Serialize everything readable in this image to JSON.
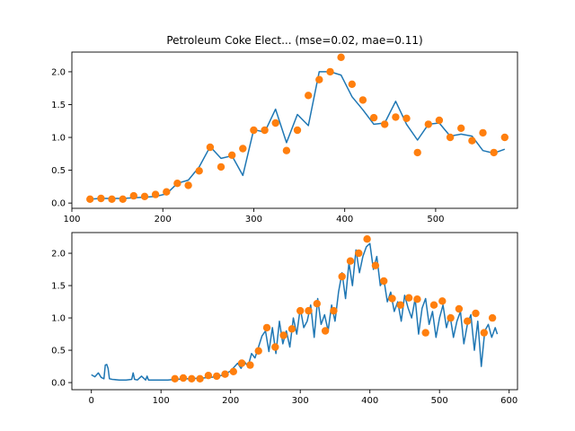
{
  "chart_data": [
    {
      "type": "line",
      "title": "Petroleum Coke Elect... (mse=0.02, mae=0.11)",
      "xlim": [
        100,
        590
      ],
      "ylim": [
        -0.08,
        2.3
      ],
      "xticks": [
        100,
        200,
        300,
        400,
        500
      ],
      "yticks": [
        0.0,
        0.5,
        1.0,
        1.5,
        2.0
      ],
      "xtick_labels": [
        "100",
        "200",
        "300",
        "400",
        "500"
      ],
      "ytick_labels": [
        "0.0",
        "0.5",
        "1.0",
        "1.5",
        "2.0"
      ],
      "grid": false,
      "series": [
        {
          "kind": "line",
          "color": "#1f77b4",
          "x": [
            120,
            132,
            144,
            156,
            168,
            180,
            192,
            204,
            216,
            228,
            240,
            252,
            264,
            276,
            288,
            300,
            312,
            324,
            336,
            348,
            360,
            372,
            384,
            396,
            408,
            420,
            432,
            444,
            456,
            468,
            480,
            492,
            504,
            516,
            528,
            540,
            552,
            564,
            576
          ],
          "y": [
            0.06,
            0.07,
            0.07,
            0.07,
            0.08,
            0.09,
            0.1,
            0.14,
            0.3,
            0.35,
            0.55,
            0.86,
            0.68,
            0.72,
            0.42,
            1.12,
            1.08,
            1.43,
            0.92,
            1.35,
            1.18,
            2.0,
            2.0,
            1.95,
            1.62,
            1.42,
            1.2,
            1.22,
            1.55,
            1.2,
            0.96,
            1.2,
            1.22,
            1.02,
            1.05,
            1.02,
            0.8,
            0.76,
            0.82
          ]
        },
        {
          "kind": "scatter",
          "color": "#ff7f0e",
          "x": [
            120,
            132,
            144,
            156,
            168,
            180,
            192,
            204,
            216,
            228,
            240,
            252,
            264,
            276,
            288,
            300,
            312,
            324,
            336,
            348,
            360,
            372,
            384,
            396,
            408,
            420,
            432,
            444,
            456,
            468,
            480,
            492,
            504,
            516,
            528,
            540,
            552,
            564,
            576
          ],
          "y": [
            0.06,
            0.07,
            0.06,
            0.06,
            0.11,
            0.1,
            0.13,
            0.17,
            0.3,
            0.27,
            0.49,
            0.85,
            0.55,
            0.73,
            0.83,
            1.11,
            1.11,
            1.22,
            0.8,
            1.11,
            1.64,
            1.88,
            2.0,
            2.22,
            1.81,
            1.57,
            1.3,
            1.2,
            1.31,
            1.29,
            0.77,
            1.2,
            1.26,
            1.0,
            1.14,
            0.95,
            1.07,
            0.77,
            1.0
          ]
        }
      ]
    },
    {
      "type": "line",
      "title": "",
      "xlim": [
        -28,
        612
      ],
      "ylim": [
        -0.11,
        2.32
      ],
      "xticks": [
        0,
        100,
        200,
        300,
        400,
        500,
        600
      ],
      "yticks": [
        0.0,
        0.5,
        1.0,
        1.5,
        2.0
      ],
      "xtick_labels": [
        "0",
        "100",
        "200",
        "300",
        "400",
        "500",
        "600"
      ],
      "ytick_labels": [
        "0.0",
        "0.5",
        "1.0",
        "1.5",
        "2.0"
      ],
      "grid": false,
      "series": [
        {
          "kind": "line",
          "color": "#1f77b4",
          "x": [
            0,
            5,
            10,
            14,
            18,
            20,
            22,
            24,
            26,
            30,
            40,
            50,
            58,
            60,
            62,
            66,
            72,
            78,
            80,
            82,
            90,
            100,
            110,
            120,
            140,
            160,
            180,
            190,
            200,
            210,
            215,
            220,
            225,
            230,
            235,
            240,
            245,
            250,
            255,
            260,
            265,
            270,
            275,
            280,
            285,
            290,
            295,
            300,
            305,
            310,
            315,
            320,
            325,
            330,
            335,
            340,
            345,
            350,
            355,
            360,
            365,
            370,
            375,
            380,
            385,
            390,
            395,
            400,
            405,
            410,
            415,
            420,
            425,
            430,
            435,
            440,
            445,
            450,
            455,
            460,
            465,
            470,
            475,
            480,
            485,
            490,
            495,
            500,
            505,
            510,
            515,
            520,
            525,
            530,
            535,
            540,
            545,
            550,
            555,
            560,
            565,
            570,
            575,
            580,
            583
          ],
          "y": [
            0.12,
            0.09,
            0.15,
            0.08,
            0.06,
            0.27,
            0.28,
            0.22,
            0.06,
            0.05,
            0.04,
            0.04,
            0.05,
            0.15,
            0.05,
            0.04,
            0.1,
            0.04,
            0.1,
            0.04,
            0.04,
            0.04,
            0.04,
            0.05,
            0.06,
            0.07,
            0.09,
            0.12,
            0.18,
            0.3,
            0.22,
            0.32,
            0.25,
            0.45,
            0.38,
            0.55,
            0.72,
            0.8,
            0.48,
            0.85,
            0.45,
            0.95,
            0.6,
            0.8,
            0.55,
            1.0,
            0.75,
            1.15,
            0.85,
            0.95,
            1.2,
            0.7,
            1.3,
            0.9,
            1.05,
            0.8,
            1.2,
            0.95,
            1.4,
            1.7,
            1.3,
            1.85,
            1.5,
            2.05,
            1.7,
            1.95,
            2.1,
            2.15,
            1.75,
            1.95,
            1.5,
            1.6,
            1.25,
            1.4,
            1.1,
            1.25,
            0.95,
            1.35,
            1.15,
            1.0,
            1.3,
            0.75,
            1.15,
            1.3,
            0.9,
            1.1,
            0.7,
            1.0,
            1.2,
            0.85,
            1.05,
            0.7,
            0.95,
            1.1,
            0.6,
            0.9,
            1.05,
            0.5,
            0.95,
            0.25,
            0.8,
            0.9,
            0.7,
            0.85,
            0.75
          ]
        },
        {
          "kind": "scatter",
          "color": "#ff7f0e",
          "x": [
            120,
            132,
            144,
            156,
            168,
            180,
            192,
            204,
            216,
            228,
            240,
            252,
            264,
            276,
            288,
            300,
            312,
            324,
            336,
            348,
            360,
            372,
            384,
            396,
            408,
            420,
            432,
            444,
            456,
            468,
            480,
            492,
            504,
            516,
            528,
            540,
            552,
            564,
            576
          ],
          "y": [
            0.06,
            0.07,
            0.06,
            0.06,
            0.11,
            0.1,
            0.13,
            0.17,
            0.3,
            0.27,
            0.49,
            0.85,
            0.55,
            0.73,
            0.83,
            1.11,
            1.11,
            1.22,
            0.8,
            1.11,
            1.64,
            1.88,
            2.0,
            2.22,
            1.81,
            1.57,
            1.3,
            1.2,
            1.31,
            1.29,
            0.77,
            1.2,
            1.26,
            1.0,
            1.14,
            0.95,
            1.07,
            0.77,
            1.0
          ]
        }
      ]
    }
  ]
}
